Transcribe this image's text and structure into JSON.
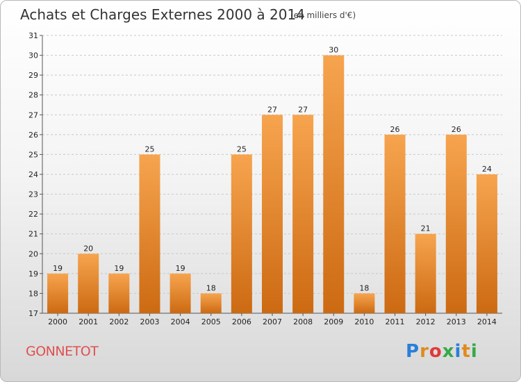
{
  "title": "Achats et Charges Externes 2000 à 2014",
  "subtitle": "(en milliers d'€)",
  "commune": "GONNETOT",
  "logo": {
    "text": "Proxiti",
    "letters": [
      "P",
      "r",
      "o",
      "x",
      "i",
      "t",
      "i"
    ],
    "colors": [
      "#2a7fd8",
      "#e08a1e",
      "#e03a3a",
      "#35a94a",
      "#2a7fd8",
      "#e08a1e",
      "#35a94a"
    ]
  },
  "colors": {
    "bar_light": "#f7a44f",
    "bar_dark": "#cc6a12",
    "title": "#333333",
    "commune": "#e05050"
  },
  "chart_data": {
    "type": "bar",
    "title": "Achats et Charges Externes 2000 à 2014",
    "subtitle": "(en milliers d'€)",
    "categories": [
      "2000",
      "2001",
      "2002",
      "2003",
      "2004",
      "2005",
      "2006",
      "2007",
      "2008",
      "2009",
      "2010",
      "2011",
      "2012",
      "2013",
      "2014"
    ],
    "values": [
      19,
      20,
      19,
      25,
      19,
      18,
      25,
      27,
      27,
      30,
      18,
      26,
      21,
      26,
      24
    ],
    "data_labels": [
      "19",
      "20",
      "19",
      "25",
      "19",
      "18",
      "25",
      "27",
      "27",
      "30",
      "18",
      "26",
      "21",
      "26",
      "24"
    ],
    "yticks": [
      "17",
      "18",
      "19",
      "20",
      "21",
      "22",
      "23",
      "24",
      "25",
      "26",
      "27",
      "28",
      "29",
      "30",
      "31"
    ],
    "ylim": [
      17,
      31
    ],
    "xlabel": "",
    "ylabel": "",
    "grid": true
  }
}
